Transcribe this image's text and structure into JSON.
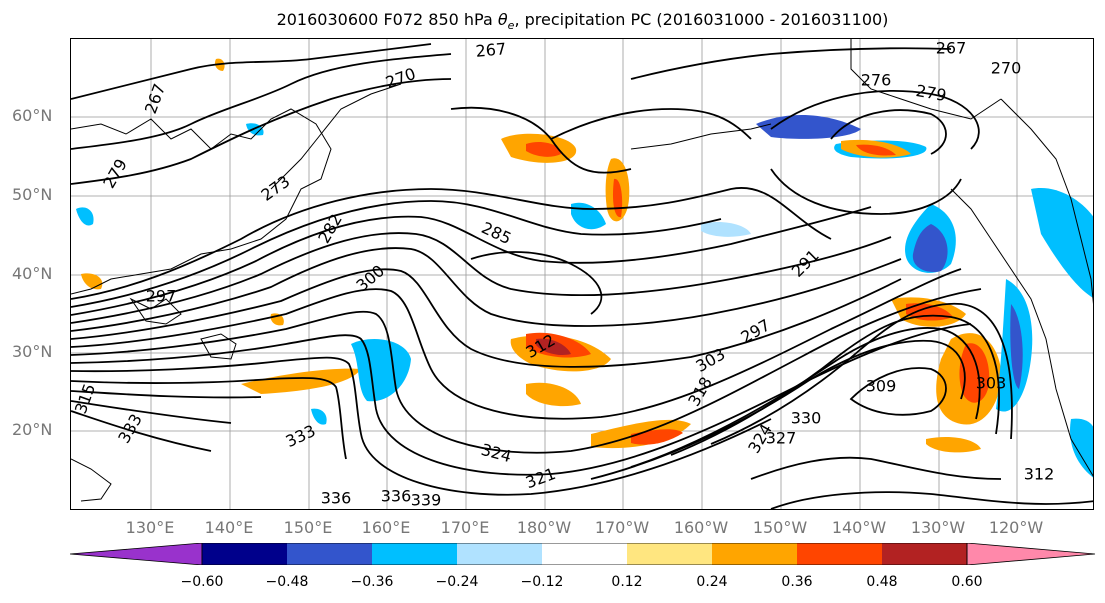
{
  "title_prefix": "2016030600 F072 850 hPa ",
  "title_var": "θ",
  "title_sub": "e",
  "title_suffix": ", precipitation PC (2016031000 - 2016031100)",
  "map": {
    "lon_labels": [
      "130°E",
      "140°E",
      "150°E",
      "160°E",
      "170°E",
      "180°W",
      "170°W",
      "160°W",
      "150°W",
      "140°W",
      "130°W",
      "120°W"
    ],
    "lat_labels": [
      "60°N",
      "50°N",
      "40°N",
      "30°N",
      "20°N"
    ],
    "contour_labels": [
      "267",
      "267",
      "270",
      "276",
      "279",
      "267",
      "270",
      "273",
      "279",
      "282",
      "285",
      "291",
      "297",
      "300",
      "303",
      "303",
      "297",
      "309",
      "312",
      "318",
      "324",
      "321",
      "324",
      "327",
      "330",
      "333",
      "333",
      "336",
      "336",
      "339",
      "312",
      "315"
    ],
    "region": "North Pacific"
  },
  "colorbar": {
    "ticks": [
      "−0.60",
      "−0.48",
      "−0.36",
      "−0.24",
      "−0.12",
      "0.12",
      "0.24",
      "0.36",
      "0.48",
      "0.60"
    ],
    "colors": [
      "#9932cc",
      "#00008b",
      "#3355cc",
      "#00bfff",
      "#b0e2ff",
      "#ffffff",
      "#ffe680",
      "#ffa500",
      "#ff4500",
      "#b22222",
      "#ff88aa"
    ]
  }
}
